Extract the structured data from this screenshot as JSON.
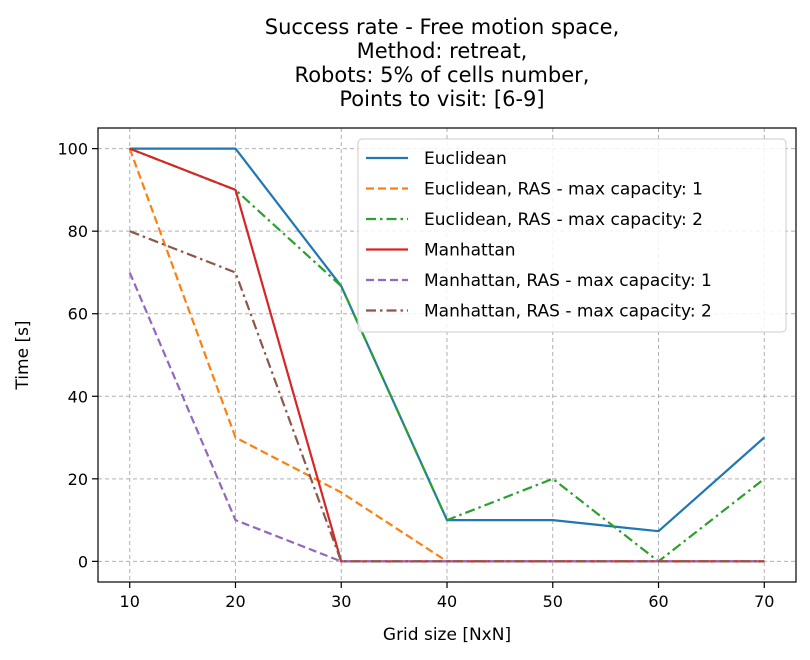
{
  "chart_data": {
    "type": "line",
    "title_lines": [
      "Success rate - Free motion space,",
      "Method: retreat,",
      "Robots: 5% of cells number,",
      "Points to visit: [6-9]"
    ],
    "xlabel": "Grid size [NxN]",
    "ylabel": "Time [s]",
    "x": [
      10,
      20,
      30,
      40,
      50,
      60,
      70
    ],
    "xticks": [
      "10",
      "20",
      "30",
      "40",
      "50",
      "60",
      "70"
    ],
    "yticks": [
      "0",
      "20",
      "40",
      "60",
      "80",
      "100"
    ],
    "xlim": [
      7,
      73
    ],
    "ylim": [
      -5,
      105
    ],
    "grid": true,
    "legend": "top-right",
    "series": [
      {
        "name": "Euclidean",
        "color": "#1f77b4",
        "dash": "solid",
        "values": [
          100,
          100,
          66.7,
          10,
          10,
          7.3,
          30
        ]
      },
      {
        "name": "Euclidean, RAS - max capacity: 1",
        "color": "#ff7f0e",
        "dash": "dashed",
        "values": [
          100,
          30,
          16.7,
          0,
          0,
          0,
          0
        ]
      },
      {
        "name": "Euclidean, RAS - max capacity: 2",
        "color": "#2ca02c",
        "dash": "dashdot",
        "values": [
          100,
          90,
          66.7,
          10,
          20,
          0,
          20
        ]
      },
      {
        "name": "Manhattan",
        "color": "#d62728",
        "dash": "solid",
        "values": [
          100,
          90,
          0,
          0,
          0,
          0,
          0
        ]
      },
      {
        "name": "Manhattan, RAS - max capacity: 1",
        "color": "#9467bd",
        "dash": "dashed",
        "values": [
          70,
          10,
          0,
          0,
          0,
          0,
          0
        ]
      },
      {
        "name": "Manhattan, RAS - max capacity: 2",
        "color": "#8c564b",
        "dash": "dashdot",
        "values": [
          80,
          70,
          0,
          0,
          0,
          0,
          0
        ]
      }
    ]
  }
}
